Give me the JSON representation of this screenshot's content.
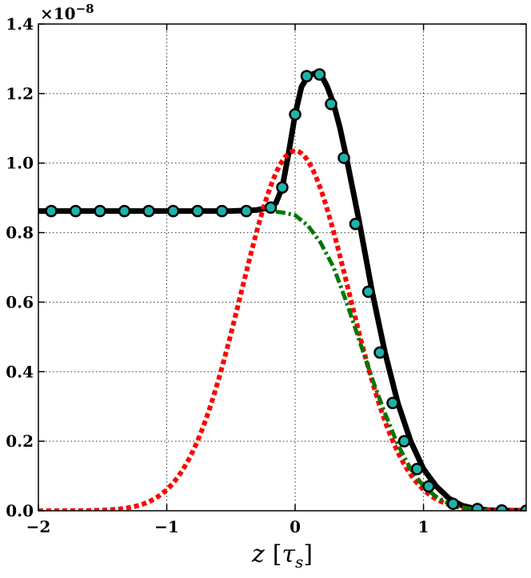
{
  "chart_data": {
    "type": "line",
    "title": "",
    "xlabel": "z [τ_s]",
    "xlabel_parts": {
      "var": "z",
      "unit_open": "[",
      "unit_var": "τ",
      "unit_sub": "s",
      "unit_close": "]"
    },
    "ylabel": "",
    "y_multiplier": "×10⁻⁸",
    "y_multiplier_parts": {
      "base": "×10",
      "exp": "−8"
    },
    "xlim": [
      -2.0,
      1.8
    ],
    "ylim": [
      0.0,
      1.4
    ],
    "grid": true,
    "legend": "none",
    "x_ticks": [
      -2,
      -1,
      0,
      1
    ],
    "x_tick_labels": [
      "−2",
      "−1",
      "0",
      "1"
    ],
    "y_ticks": [
      0.0,
      0.2,
      0.4,
      0.6,
      0.8,
      1.0,
      1.2,
      1.4
    ],
    "y_tick_labels": [
      "0.0",
      "0.2",
      "0.4",
      "0.6",
      "0.8",
      "1.0",
      "1.2",
      "1.4"
    ],
    "series": [
      {
        "style": "solid",
        "color": "#000000",
        "x": [
          -2.0,
          -1.0,
          -0.5,
          -0.3,
          -0.2,
          -0.15,
          -0.1,
          -0.05,
          0.0,
          0.05,
          0.1,
          0.15,
          0.2,
          0.25,
          0.3,
          0.35,
          0.4,
          0.5,
          0.6,
          0.7,
          0.8,
          0.9,
          1.0,
          1.1,
          1.2,
          1.3,
          1.4,
          1.5,
          1.6,
          1.8
        ],
        "y": [
          0.862,
          0.862,
          0.862,
          0.865,
          0.872,
          0.885,
          0.93,
          1.03,
          1.14,
          1.22,
          1.25,
          1.258,
          1.255,
          1.22,
          1.17,
          1.1,
          1.015,
          0.83,
          0.63,
          0.455,
          0.31,
          0.2,
          0.12,
          0.07,
          0.035,
          0.015,
          0.006,
          0.002,
          0.0005,
          0.0
        ]
      },
      {
        "style": "markers",
        "color": "#20b2aa",
        "edge_color": "#000000",
        "x": [
          -1.9,
          -1.71,
          -1.52,
          -1.33,
          -1.14,
          -0.95,
          -0.76,
          -0.57,
          -0.38,
          -0.19,
          -0.1,
          0.0,
          0.09,
          0.19,
          0.28,
          0.38,
          0.47,
          0.57,
          0.66,
          0.76,
          0.85,
          0.95,
          1.04,
          1.23,
          1.42,
          1.61,
          1.8
        ],
        "y": [
          0.862,
          0.862,
          0.862,
          0.862,
          0.862,
          0.862,
          0.862,
          0.862,
          0.862,
          0.872,
          0.93,
          1.14,
          1.25,
          1.255,
          1.17,
          1.015,
          0.825,
          0.63,
          0.455,
          0.31,
          0.2,
          0.12,
          0.07,
          0.02,
          0.005,
          0.001,
          0.0
        ]
      },
      {
        "style": "dotted",
        "color": "#ff0000",
        "gaussian": {
          "amplitude": 1.035,
          "center": 0.0,
          "sigma": 0.42
        }
      },
      {
        "style": "dashdot",
        "color": "#007700",
        "x": [
          -0.15,
          -0.1,
          0.0,
          0.1,
          0.2,
          0.3,
          0.4,
          0.5,
          0.6,
          0.7,
          0.8,
          0.9,
          1.0,
          1.1,
          1.2,
          1.3,
          1.4,
          1.5
        ],
        "y": [
          0.86,
          0.858,
          0.85,
          0.82,
          0.77,
          0.7,
          0.6,
          0.49,
          0.38,
          0.28,
          0.19,
          0.12,
          0.07,
          0.04,
          0.02,
          0.009,
          0.004,
          0.0
        ]
      }
    ]
  }
}
